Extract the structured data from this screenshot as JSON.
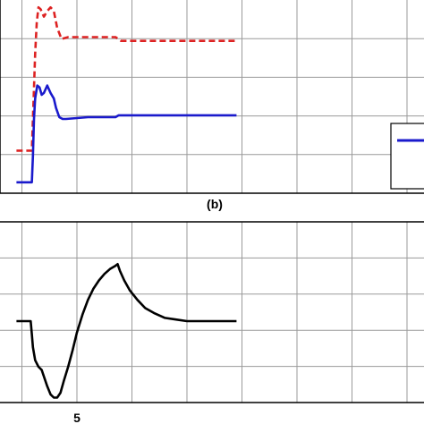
{
  "chart_data": [
    {
      "type": "line",
      "title": "",
      "xlabel": "",
      "ylabel": "",
      "grid": true,
      "legend": "bottom-right",
      "series": [
        {
          "color": "#dd2222",
          "dashed": true,
          "points": [
            [
              -0.5,
              0.2
            ],
            [
              0.9,
              0.2
            ],
            [
              1.0,
              0.37
            ],
            [
              1.2,
              0.72
            ],
            [
              1.35,
              0.89
            ],
            [
              1.5,
              0.97
            ],
            [
              1.7,
              0.96
            ],
            [
              2.0,
              0.92
            ],
            [
              2.3,
              0.95
            ],
            [
              2.6,
              0.97
            ],
            [
              2.9,
              0.95
            ],
            [
              3.2,
              0.86
            ],
            [
              3.6,
              0.8
            ],
            [
              4.2,
              0.81
            ],
            [
              5.0,
              0.81
            ],
            [
              6.0,
              0.81
            ],
            [
              7.0,
              0.81
            ],
            [
              8.0,
              0.81
            ],
            [
              8.5,
              0.81
            ],
            [
              9.0,
              0.79
            ],
            [
              10.0,
              0.79
            ],
            [
              12.0,
              0.79
            ],
            [
              14.0,
              0.79
            ],
            [
              16.0,
              0.79
            ],
            [
              18.0,
              0.79
            ],
            [
              19.5,
              0.79
            ]
          ]
        },
        {
          "color": "#1a1acc",
          "dashed": false,
          "points": [
            [
              -0.5,
              0.03
            ],
            [
              0.9,
              0.03
            ],
            [
              1.0,
              0.17
            ],
            [
              1.1,
              0.37
            ],
            [
              1.2,
              0.48
            ],
            [
              1.4,
              0.55
            ],
            [
              1.6,
              0.54
            ],
            [
              1.8,
              0.5
            ],
            [
              2.0,
              0.51
            ],
            [
              2.3,
              0.55
            ],
            [
              2.6,
              0.51
            ],
            [
              2.9,
              0.48
            ],
            [
              3.1,
              0.43
            ],
            [
              3.4,
              0.38
            ],
            [
              3.7,
              0.37
            ],
            [
              4.0,
              0.37
            ],
            [
              5.0,
              0.375
            ],
            [
              6.0,
              0.38
            ],
            [
              7.0,
              0.38
            ],
            [
              8.0,
              0.38
            ],
            [
              8.5,
              0.38
            ],
            [
              8.8,
              0.39
            ],
            [
              10.0,
              0.39
            ],
            [
              12.0,
              0.39
            ],
            [
              14.0,
              0.39
            ],
            [
              16.0,
              0.39
            ],
            [
              18.0,
              0.39
            ],
            [
              19.5,
              0.39
            ]
          ]
        }
      ]
    },
    {
      "type": "line",
      "title": "(b)",
      "xlabel": "",
      "ylabel": "",
      "grid": true,
      "x_tick_labels": [
        {
          "x": 5,
          "label": "5"
        }
      ],
      "series": [
        {
          "color": "#000000",
          "dashed": false,
          "points": [
            [
              -0.5,
              0.5
            ],
            [
              0.8,
              0.5
            ],
            [
              0.9,
              0.42
            ],
            [
              1.0,
              0.34
            ],
            [
              1.2,
              0.26
            ],
            [
              1.5,
              0.22
            ],
            [
              1.8,
              0.2
            ],
            [
              2.0,
              0.16
            ],
            [
              2.3,
              0.1
            ],
            [
              2.6,
              0.05
            ],
            [
              2.9,
              0.03
            ],
            [
              3.2,
              0.03
            ],
            [
              3.5,
              0.06
            ],
            [
              3.8,
              0.13
            ],
            [
              4.2,
              0.22
            ],
            [
              4.6,
              0.32
            ],
            [
              5.0,
              0.43
            ],
            [
              5.5,
              0.54
            ],
            [
              6.0,
              0.63
            ],
            [
              6.5,
              0.7
            ],
            [
              7.0,
              0.75
            ],
            [
              7.5,
              0.79
            ],
            [
              8.0,
              0.82
            ],
            [
              8.5,
              0.84
            ],
            [
              8.7,
              0.85
            ],
            [
              8.9,
              0.81
            ],
            [
              9.3,
              0.75
            ],
            [
              9.8,
              0.69
            ],
            [
              10.5,
              0.63
            ],
            [
              11.2,
              0.58
            ],
            [
              12.0,
              0.55
            ],
            [
              13.0,
              0.52
            ],
            [
              14.0,
              0.51
            ],
            [
              15.0,
              0.5
            ],
            [
              16.0,
              0.5
            ],
            [
              17.0,
              0.5
            ],
            [
              18.0,
              0.5
            ],
            [
              19.5,
              0.5
            ]
          ]
        }
      ]
    }
  ]
}
